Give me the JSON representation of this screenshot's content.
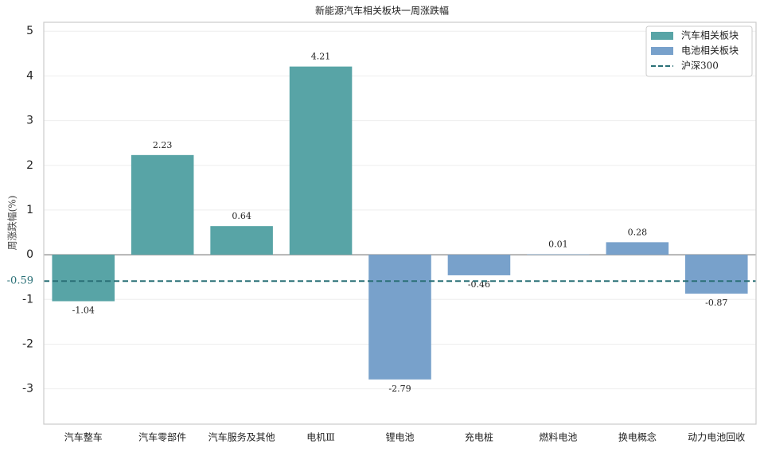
{
  "chart_data": {
    "type": "bar",
    "title": "新能源汽车相关板块一周涨跌幅",
    "y_label": "周涨跌幅(%)",
    "categories": [
      "汽车整车",
      "汽车零部件",
      "汽车服务及其他",
      "电机Ⅲ",
      "锂电池",
      "充电桩",
      "燃料电池",
      "换电概念",
      "动力电池回收"
    ],
    "series": [
      {
        "name": "汽车相关板块",
        "color": "#58a4a6",
        "values": [
          -1.04,
          2.23,
          0.64,
          4.21,
          null,
          null,
          null,
          null,
          null
        ]
      },
      {
        "name": "电池相关板块",
        "color": "#78a1cb",
        "values": [
          null,
          null,
          null,
          null,
          -2.79,
          -0.46,
          0.01,
          0.28,
          -0.87
        ]
      }
    ],
    "reference": {
      "name": "沪深300",
      "value": -0.59,
      "color": "#2a7077"
    },
    "ylim": [
      -3.79,
      5.2
    ],
    "yticks": [
      -3,
      -2,
      -1,
      0,
      1,
      2,
      3,
      4,
      5
    ],
    "grid": true,
    "legend": "upper right"
  }
}
